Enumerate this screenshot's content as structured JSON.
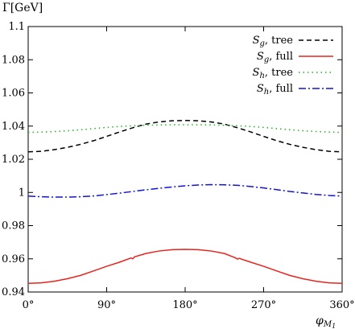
{
  "chart_data": {
    "type": "line",
    "ylabel": "Γ[GeV]",
    "xlabel": "φ",
    "xlabel_subscript": "M",
    "xlabel_subsubscript": "1",
    "xlim": [
      0,
      360
    ],
    "ylim": [
      0.94,
      1.1
    ],
    "xticks": [
      0,
      90,
      180,
      270,
      360
    ],
    "xtick_labels": [
      "0°",
      "90°",
      "180°",
      "270°",
      "360°"
    ],
    "yticks": [
      0.94,
      0.96,
      0.98,
      1.0,
      1.02,
      1.04,
      1.06,
      1.08,
      1.1
    ],
    "ytick_labels": [
      "0.94",
      "0.96",
      "0.98",
      "1",
      "1.02",
      "1.04",
      "1.06",
      "1.08",
      "1.1"
    ],
    "grid": false,
    "legend_position": "top-right",
    "series": [
      {
        "name": "S_g, tree",
        "name_main": "S",
        "name_sub": "g",
        "name_rest": ", tree",
        "color": "#000000",
        "dash": "6,4",
        "x": [
          0,
          15,
          30,
          45,
          60,
          75,
          90,
          105,
          120,
          135,
          150,
          165,
          180,
          195,
          210,
          225,
          240,
          255,
          270,
          285,
          300,
          315,
          330,
          345,
          360
        ],
        "y": [
          1.0245,
          1.0248,
          1.0258,
          1.0272,
          1.029,
          1.0312,
          1.0338,
          1.0365,
          1.039,
          1.0412,
          1.0425,
          1.0432,
          1.0434,
          1.0432,
          1.0425,
          1.0412,
          1.039,
          1.0365,
          1.0338,
          1.0312,
          1.029,
          1.0272,
          1.0258,
          1.0248,
          1.0245
        ]
      },
      {
        "name": "S_g, full",
        "name_main": "S",
        "name_sub": "g",
        "name_rest": ", full",
        "color": "#e8241c",
        "dash": "",
        "x": [
          0,
          15,
          30,
          45,
          60,
          75,
          90,
          105,
          118,
          120,
          122,
          135,
          150,
          165,
          180,
          195,
          210,
          225,
          238,
          240,
          242,
          255,
          270,
          285,
          300,
          315,
          330,
          345,
          360
        ],
        "y": [
          0.9452,
          0.9455,
          0.9465,
          0.948,
          0.95,
          0.9527,
          0.9555,
          0.958,
          0.9605,
          0.96,
          0.9612,
          0.9632,
          0.9647,
          0.9655,
          0.9657,
          0.9655,
          0.9647,
          0.9632,
          0.9605,
          0.9598,
          0.9603,
          0.958,
          0.9555,
          0.9527,
          0.95,
          0.948,
          0.9465,
          0.9455,
          0.9452
        ]
      },
      {
        "name": "S_h, tree",
        "name_main": "S",
        "name_sub": "h",
        "name_rest": ", tree",
        "color": "#22b422",
        "dash": "1.5,4",
        "x": [
          0,
          15,
          30,
          45,
          60,
          75,
          90,
          105,
          120,
          135,
          150,
          165,
          180,
          195,
          210,
          225,
          240,
          255,
          270,
          285,
          300,
          315,
          330,
          345,
          360
        ],
        "y": [
          1.0362,
          1.0364,
          1.0367,
          1.0372,
          1.0378,
          1.0385,
          1.0392,
          1.0398,
          1.0402,
          1.0405,
          1.0407,
          1.0408,
          1.0408,
          1.0408,
          1.0407,
          1.0405,
          1.0402,
          1.0398,
          1.0392,
          1.0385,
          1.0378,
          1.0372,
          1.0367,
          1.0364,
          1.0362
        ]
      },
      {
        "name": "S_h, full",
        "name_main": "S",
        "name_sub": "h",
        "name_rest": ", full",
        "color": "#1414d4",
        "dash": "9,3,2,3",
        "x": [
          0,
          15,
          30,
          45,
          60,
          75,
          90,
          105,
          120,
          135,
          150,
          165,
          180,
          195,
          210,
          225,
          240,
          255,
          270,
          285,
          300,
          315,
          330,
          345,
          360
        ],
        "y": [
          0.9978,
          0.9974,
          0.9972,
          0.9972,
          0.9974,
          0.9979,
          0.9987,
          0.9996,
          1.0006,
          1.0016,
          1.0025,
          1.0033,
          1.004,
          1.0045,
          1.0047,
          1.0046,
          1.0043,
          1.0036,
          1.0027,
          1.0017,
          1.0006,
          0.9997,
          0.9988,
          0.9982,
          0.9978
        ]
      }
    ]
  }
}
